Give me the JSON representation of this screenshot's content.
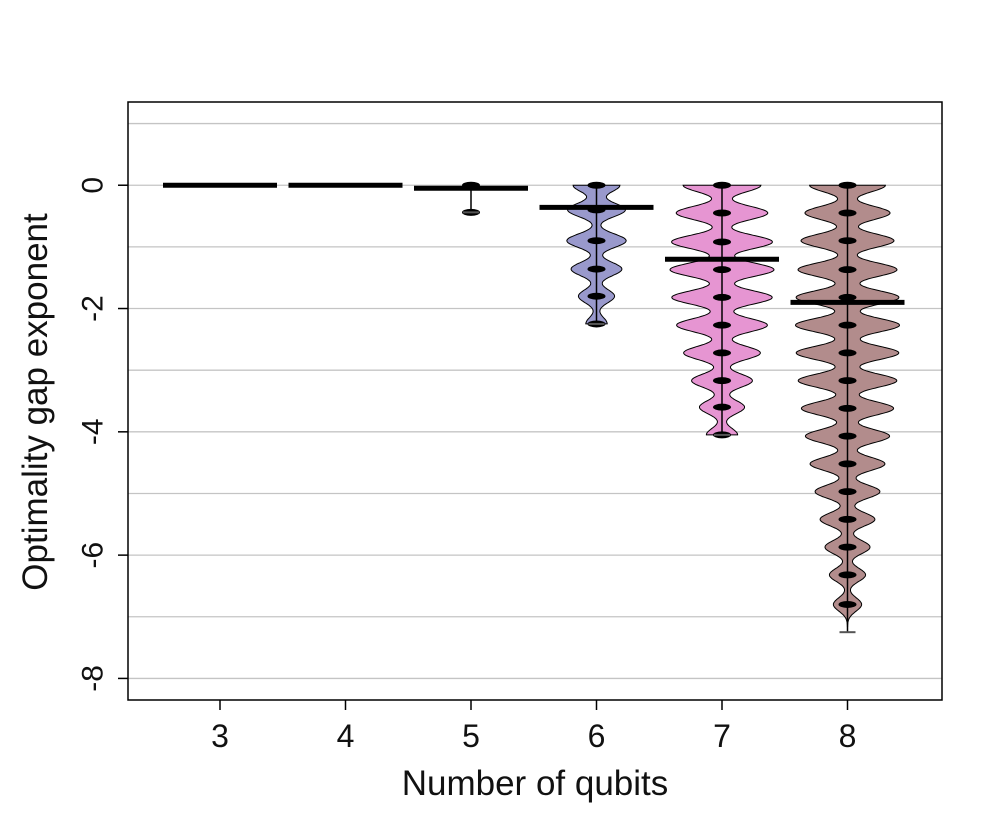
{
  "chart_data": {
    "type": "violin",
    "title": "",
    "xlabel": "Number of qubits",
    "ylabel": "Optimality gap exponent",
    "x_ticks": [
      "3",
      "4",
      "5",
      "6",
      "7",
      "8"
    ],
    "y_ticks": [
      0,
      -2,
      -4,
      -6,
      -8
    ],
    "ylim": [
      -8.35,
      1.35
    ],
    "grid": true,
    "grid_lines": [
      1,
      0,
      -1,
      -2,
      -3,
      -4,
      -5,
      -6,
      -7,
      -8
    ],
    "series": [
      {
        "qubits": "3",
        "color": "#000000",
        "mean": 0.0,
        "min": 0.0,
        "max": 0.0,
        "modes": []
      },
      {
        "qubits": "4",
        "color": "#000000",
        "mean": 0.0,
        "min": 0.0,
        "max": 0.0,
        "modes": []
      },
      {
        "qubits": "5",
        "color": "#000000",
        "mean": -0.05,
        "min": -0.44,
        "max": 0.0,
        "modes": [
          0.0,
          -0.44
        ]
      },
      {
        "qubits": "6",
        "color": "#9999cc",
        "mean": -0.36,
        "min": -2.25,
        "max": 0.0,
        "modes": [
          0.0,
          -0.4,
          -0.9,
          -1.36,
          -1.8,
          -2.25
        ]
      },
      {
        "qubits": "7",
        "color": "#e695d2",
        "mean": -1.2,
        "min": -4.05,
        "max": 0.0,
        "modes": [
          0.0,
          -0.45,
          -0.92,
          -1.37,
          -1.82,
          -2.27,
          -2.72,
          -3.17,
          -3.6,
          -4.05
        ]
      },
      {
        "qubits": "8",
        "color": "#b28c8c",
        "mean": -1.9,
        "min": -7.25,
        "max": 0.0,
        "modes": [
          0.0,
          -0.45,
          -0.9,
          -1.37,
          -1.82,
          -2.27,
          -2.72,
          -3.17,
          -3.62,
          -4.07,
          -4.52,
          -4.97,
          -5.42,
          -5.87,
          -6.32,
          -6.8
        ]
      }
    ]
  }
}
